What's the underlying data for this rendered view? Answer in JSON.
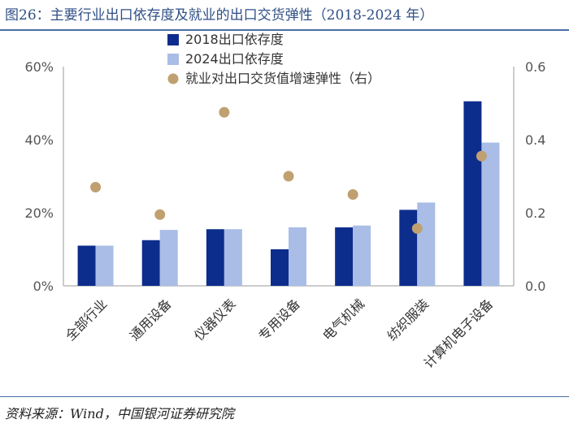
{
  "title": "图26：主要行业出口依存度及就业的出口交货弹性（2018-2024 年）",
  "source": "资料来源：Wind，中国银河证券研究院",
  "colors": {
    "s2018": "#0d2d8c",
    "s2024": "#a9bde6",
    "dot": "#c0a070",
    "accent": "#4a6da7"
  },
  "chart_data": {
    "type": "bar",
    "categories": [
      "全部行业",
      "通用设备",
      "仪器仪表",
      "专用设备",
      "电气机械",
      "纺织服装",
      "计算机电子设备"
    ],
    "series": [
      {
        "name": "2018出口依存度",
        "axis": "left",
        "kind": "bar",
        "values": [
          11,
          12.5,
          15.5,
          10,
          16,
          20.8,
          50.5
        ]
      },
      {
        "name": "2024出口依存度",
        "axis": "left",
        "kind": "bar",
        "values": [
          11,
          15.3,
          15.5,
          16,
          16.5,
          22.8,
          39.2
        ]
      },
      {
        "name": "就业对出口交货值增速弹性（右）",
        "axis": "right",
        "kind": "scatter",
        "values": [
          0.27,
          0.195,
          0.475,
          0.3,
          0.25,
          0.157,
          0.355
        ]
      }
    ],
    "left_axis": {
      "ylim": [
        0,
        60
      ],
      "ticks": [
        "0%",
        "20%",
        "40%",
        "60%"
      ]
    },
    "right_axis": {
      "ylim": [
        0,
        0.6
      ],
      "ticks": [
        "0.0",
        "0.2",
        "0.4",
        "0.6"
      ]
    },
    "legend_position": "top-center"
  }
}
